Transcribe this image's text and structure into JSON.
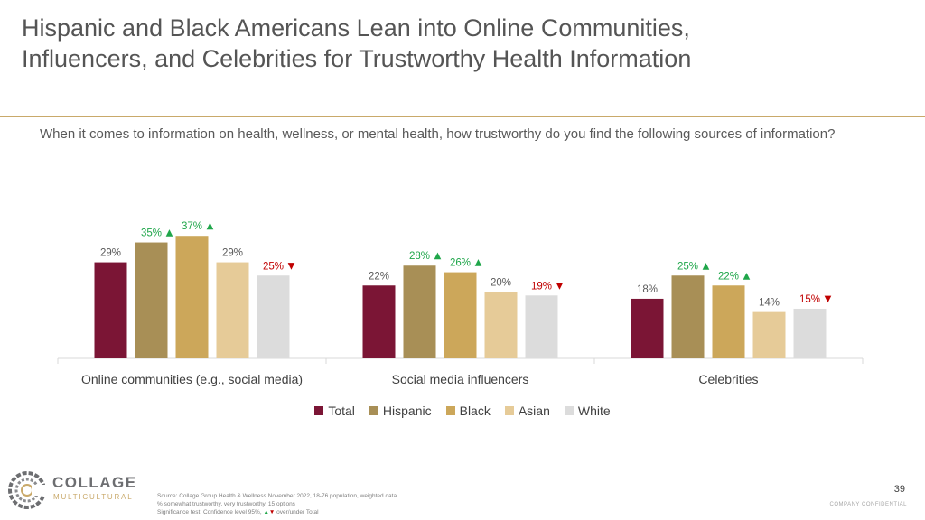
{
  "title_line1": "Hispanic and Black Americans Lean into Online Communities,",
  "title_line2": "Influencers, and Celebrities for Trustworthy Health Information",
  "question": "When it comes to information on health, wellness, or mental health, how trustworthy do you find the following sources of information?",
  "chart_data": {
    "type": "bar",
    "categories": [
      "Online communities (e.g., social media)",
      "Social media influencers",
      "Celebrities"
    ],
    "series": [
      {
        "name": "Total",
        "color": "#7b1535",
        "values": [
          29,
          22,
          18
        ],
        "labels": [
          "29%",
          "22%",
          "18%"
        ],
        "sig": [
          "none",
          "none",
          "none"
        ]
      },
      {
        "name": "Hispanic",
        "color": "#a88f56",
        "values": [
          35,
          28,
          25
        ],
        "labels": [
          "35%",
          "28%",
          "25%"
        ],
        "sig": [
          "up",
          "up",
          "up"
        ]
      },
      {
        "name": "Black",
        "color": "#cca75a",
        "values": [
          37,
          26,
          22
        ],
        "labels": [
          "37%",
          "26%",
          "22%"
        ],
        "sig": [
          "up",
          "up",
          "up"
        ]
      },
      {
        "name": "Asian",
        "color": "#e6cb98",
        "values": [
          29,
          20,
          14
        ],
        "labels": [
          "29%",
          "20%",
          "14%"
        ],
        "sig": [
          "none",
          "none",
          "none"
        ]
      },
      {
        "name": "White",
        "color": "#dcdcdc",
        "values": [
          25,
          19,
          15
        ],
        "labels": [
          "25%",
          "19%",
          "15%"
        ],
        "sig": [
          "down",
          "down",
          "down"
        ]
      }
    ],
    "sig_colors": {
      "up": "#1fa64a",
      "down": "#c00000",
      "none": "#595959"
    },
    "sig_glyphs": {
      "up": "▲",
      "down": "▼"
    },
    "ylim": [
      0,
      40
    ],
    "grid": false,
    "legend_position": "bottom"
  },
  "logo": {
    "word": "COLLAGE",
    "sub": "MULTICULTURAL"
  },
  "source": {
    "line1": "Source: Collage Group Health & Wellness November 2022, 18-76 population, weighted data",
    "line2": "% somewhat trustworthy, very trustworthy, 15 options",
    "line3_prefix": "Significance test: Confidence level 95%, ",
    "line3_up": "▲",
    "line3_down": "▼",
    "line3_suffix": " over/under Total"
  },
  "page_number": "39",
  "confidential": "COMPANY CONFIDENTIAL"
}
